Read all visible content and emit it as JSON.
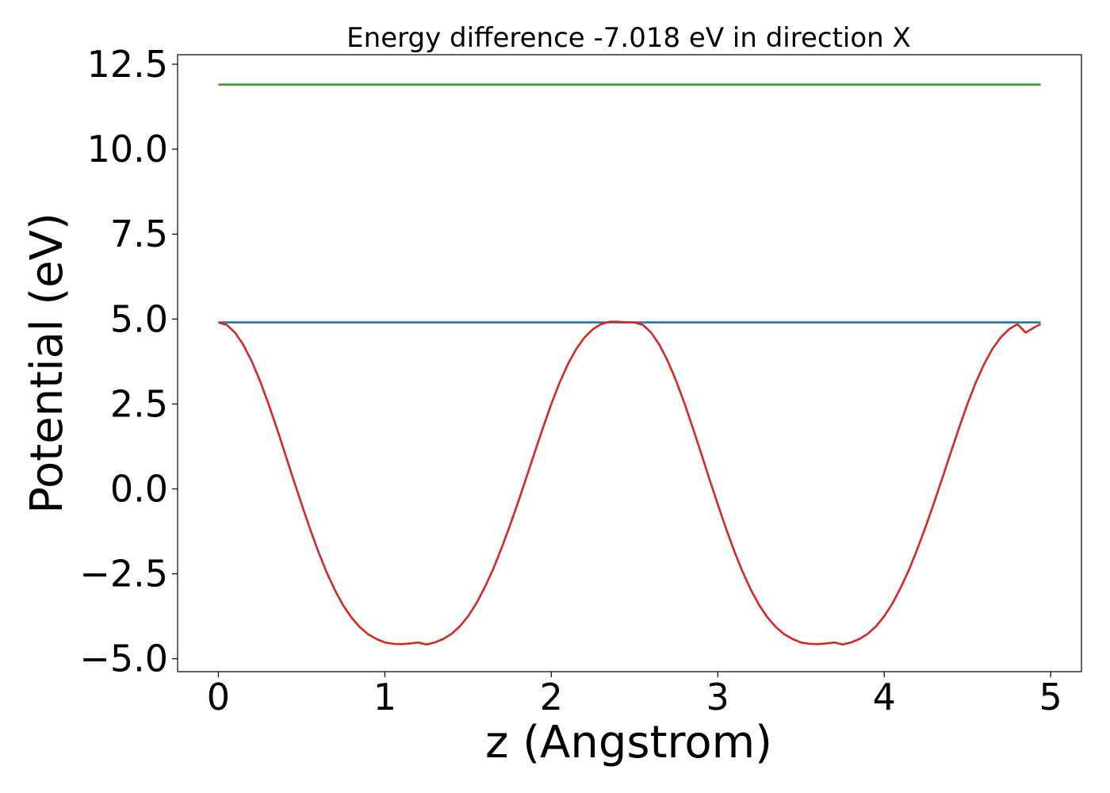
{
  "chart_data": {
    "type": "line",
    "title": "Energy difference -7.018 eV in direction X",
    "xlabel": "z (Angstrom)",
    "ylabel": "Potential (eV)",
    "xlim": [
      -0.245,
      5.185
    ],
    "ylim": [
      -5.38,
      12.78
    ],
    "xticks": [
      0,
      1,
      2,
      3,
      4,
      5
    ],
    "xtick_labels": [
      "0",
      "1",
      "2",
      "3",
      "4",
      "5"
    ],
    "yticks": [
      -5.0,
      -2.5,
      0.0,
      2.5,
      5.0,
      7.5,
      10.0,
      12.5
    ],
    "ytick_labels": [
      "−5.0",
      "−2.5",
      "0.0",
      "2.5",
      "5.0",
      "7.5",
      "10.0",
      "12.5"
    ],
    "grid": false,
    "series": [
      {
        "color": "#2ca02c",
        "x": [
          0.0,
          4.94
        ],
        "y": [
          11.9,
          11.9
        ]
      },
      {
        "color": "#1f77b4",
        "x": [
          0.0,
          4.94
        ],
        "y": [
          4.9,
          4.9
        ]
      },
      {
        "color": "#d62728",
        "x": [
          0.0,
          0.05,
          0.1,
          0.15,
          0.2,
          0.25,
          0.3,
          0.35,
          0.4,
          0.45,
          0.5,
          0.55,
          0.6,
          0.65,
          0.7,
          0.75,
          0.8,
          0.85,
          0.9,
          0.95,
          1.0,
          1.05,
          1.1,
          1.15,
          1.2,
          1.25,
          1.3,
          1.35,
          1.4,
          1.45,
          1.5,
          1.55,
          1.6,
          1.65,
          1.7,
          1.75,
          1.8,
          1.85,
          1.9,
          1.95,
          2.0,
          2.05,
          2.1,
          2.15,
          2.2,
          2.25,
          2.3,
          2.35,
          2.4,
          2.45,
          2.5,
          2.55,
          2.6,
          2.65,
          2.7,
          2.75,
          2.8,
          2.85,
          2.9,
          2.95,
          3.0,
          3.05,
          3.1,
          3.15,
          3.2,
          3.25,
          3.3,
          3.35,
          3.4,
          3.45,
          3.5,
          3.55,
          3.6,
          3.65,
          3.7,
          3.75,
          3.8,
          3.85,
          3.9,
          3.95,
          4.0,
          4.05,
          4.1,
          4.15,
          4.2,
          4.25,
          4.3,
          4.35,
          4.4,
          4.45,
          4.5,
          4.55,
          4.6,
          4.65,
          4.7,
          4.75,
          4.8,
          4.85,
          4.9,
          4.94
        ],
        "y": [
          4.9,
          4.83,
          4.6,
          4.24,
          3.76,
          3.18,
          2.52,
          1.8,
          1.05,
          0.29,
          -0.45,
          -1.17,
          -1.84,
          -2.45,
          -2.98,
          -3.43,
          -3.79,
          -4.07,
          -4.28,
          -4.42,
          -4.52,
          -4.56,
          -4.57,
          -4.55,
          -4.52,
          -4.58,
          -4.52,
          -4.42,
          -4.27,
          -4.05,
          -3.75,
          -3.37,
          -2.9,
          -2.37,
          -1.76,
          -1.1,
          -0.4,
          0.33,
          1.07,
          1.8,
          2.5,
          3.13,
          3.67,
          4.12,
          4.46,
          4.7,
          4.85,
          4.92,
          4.92,
          4.9,
          4.9,
          4.83,
          4.6,
          4.24,
          3.76,
          3.18,
          2.52,
          1.8,
          1.05,
          0.29,
          -0.45,
          -1.17,
          -1.84,
          -2.45,
          -2.98,
          -3.43,
          -3.79,
          -4.07,
          -4.28,
          -4.42,
          -4.52,
          -4.56,
          -4.57,
          -4.55,
          -4.52,
          -4.58,
          -4.52,
          -4.42,
          -4.27,
          -4.05,
          -3.75,
          -3.37,
          -2.9,
          -2.37,
          -1.76,
          -1.1,
          -0.4,
          0.33,
          1.07,
          1.8,
          2.5,
          3.13,
          3.67,
          4.12,
          4.46,
          4.7,
          4.85,
          4.6,
          4.75,
          4.85
        ]
      }
    ]
  }
}
